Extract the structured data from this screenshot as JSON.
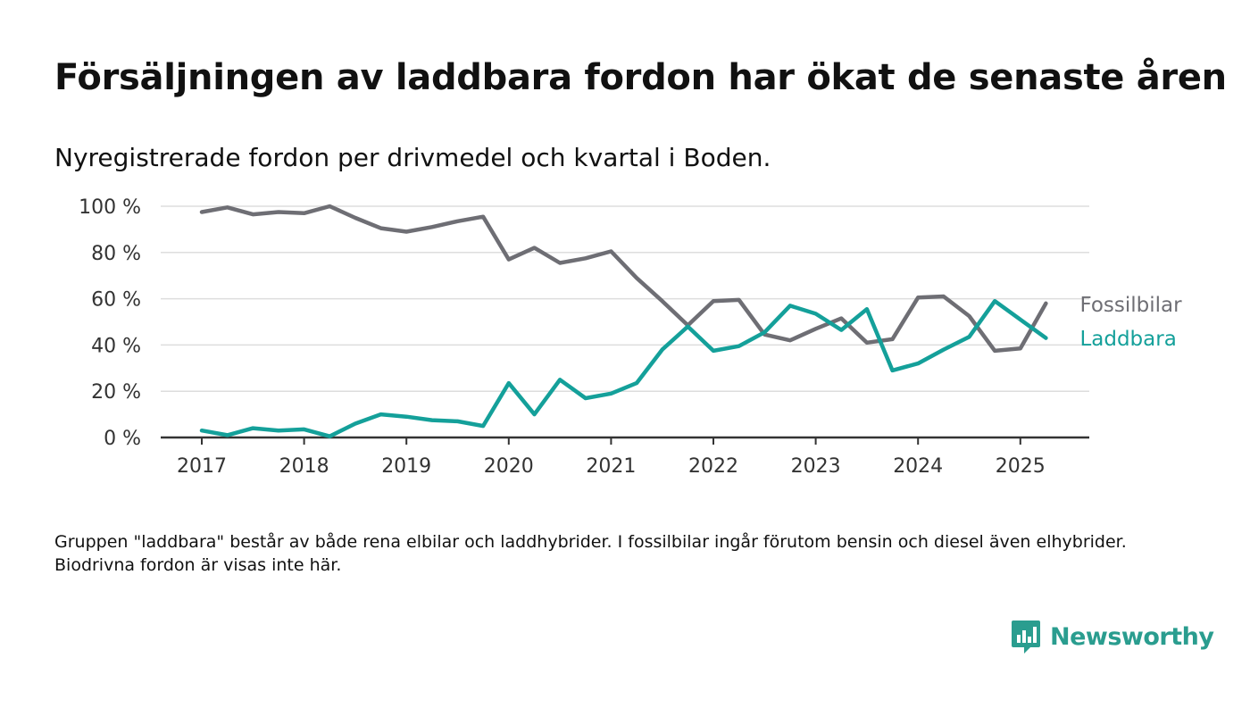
{
  "title": "Försäljningen av laddbara fordon har ökat de senaste åren",
  "subtitle": "Nyregistrerade fordon per drivmedel och kvartal i Boden.",
  "note": "Gruppen \"laddbara\" består av både rena elbilar och laddhybrider. I fossilbilar ingår förutom bensin och diesel även elhybrider. Biodrivna fordon är visas inte här.",
  "brand": {
    "name": "Newsworthy",
    "icon": "newsworthy-logo-icon"
  },
  "colors": {
    "fossil": "#6e6e74",
    "laddbara": "#14a09a",
    "grid": "#dddddd",
    "axis": "#333333"
  },
  "chart_data": {
    "type": "line",
    "x_start": 2017,
    "x_step": 0.25,
    "xticks": [
      "2017",
      "2018",
      "2019",
      "2020",
      "2021",
      "2022",
      "2023",
      "2024",
      "2025"
    ],
    "yticks": [
      "0 %",
      "20 %",
      "40 %",
      "60 %",
      "80 %",
      "100 %"
    ],
    "ylim": [
      0,
      100
    ],
    "xlim": [
      2016.6,
      2025.65
    ],
    "grid": true,
    "legend": "end-of-line labels",
    "series": [
      {
        "name": "Fossilbilar",
        "color": "#6e6e74",
        "values": [
          97.5,
          99.5,
          96.5,
          97.5,
          97,
          100,
          95,
          90.5,
          89,
          91,
          93.5,
          95.5,
          77,
          82,
          75.5,
          77.5,
          80.5,
          69,
          59,
          48.5,
          59,
          59.5,
          44.5,
          42,
          47,
          51.5,
          41,
          42.5,
          60.5,
          61,
          52.5,
          37.5,
          38.5,
          58
        ]
      },
      {
        "name": "Laddbara",
        "color": "#14a09a",
        "values": [
          3,
          1,
          4,
          3,
          3.5,
          0.5,
          6,
          10,
          9,
          7.5,
          7,
          5,
          23.5,
          10,
          25,
          17,
          19,
          23.5,
          38,
          48,
          37.5,
          39.5,
          45.5,
          57,
          53.5,
          46.5,
          55.5,
          29,
          32,
          38,
          43.5,
          59,
          51,
          43
        ]
      }
    ]
  }
}
